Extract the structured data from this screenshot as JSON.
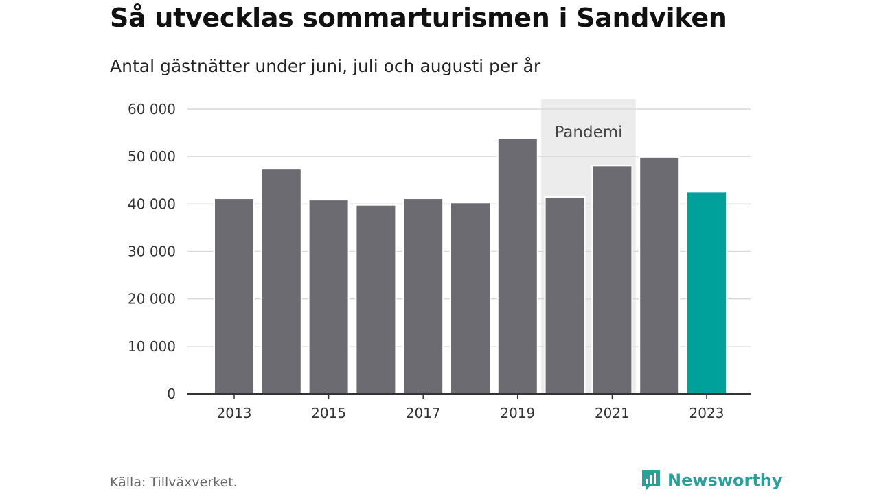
{
  "title": "Så utvecklas sommarturismen i Sandviken",
  "subtitle": "Antal gästnätter under juni, juli och augusti per år",
  "source": "Källa: Tillväxverket.",
  "brand": {
    "name": "Newsworthy",
    "icon": "newsworthy-logo-icon"
  },
  "colors": {
    "bar": "#6c6b72",
    "highlight": "#00a19b",
    "band": "#ececec",
    "grid": "#d9d9d9",
    "axis": "#333333"
  },
  "chart_data": {
    "type": "bar",
    "title": "Så utvecklas sommarturismen i Sandviken",
    "subtitle": "Antal gästnätter under juni, juli och augusti per år",
    "categories": [
      "2013",
      "2014",
      "2015",
      "2016",
      "2017",
      "2018",
      "2019",
      "2020",
      "2021",
      "2022",
      "2023"
    ],
    "values": [
      41200,
      47400,
      40900,
      39800,
      41200,
      40300,
      53900,
      41500,
      48100,
      49900,
      42600
    ],
    "highlight_category": "2023",
    "x_tick_labels": [
      "2013",
      "2015",
      "2017",
      "2019",
      "2021",
      "2023"
    ],
    "y_ticks": [
      0,
      10000,
      20000,
      30000,
      40000,
      50000,
      60000
    ],
    "y_tick_labels": [
      "0",
      "10 000",
      "20 000",
      "30 000",
      "40 000",
      "50 000",
      "60 000"
    ],
    "ylim": [
      0,
      60000
    ],
    "grid": true,
    "xlabel": "",
    "ylabel": "",
    "annotations": [
      {
        "label": "Pandemi",
        "from": "2020",
        "to": "2021"
      }
    ]
  }
}
